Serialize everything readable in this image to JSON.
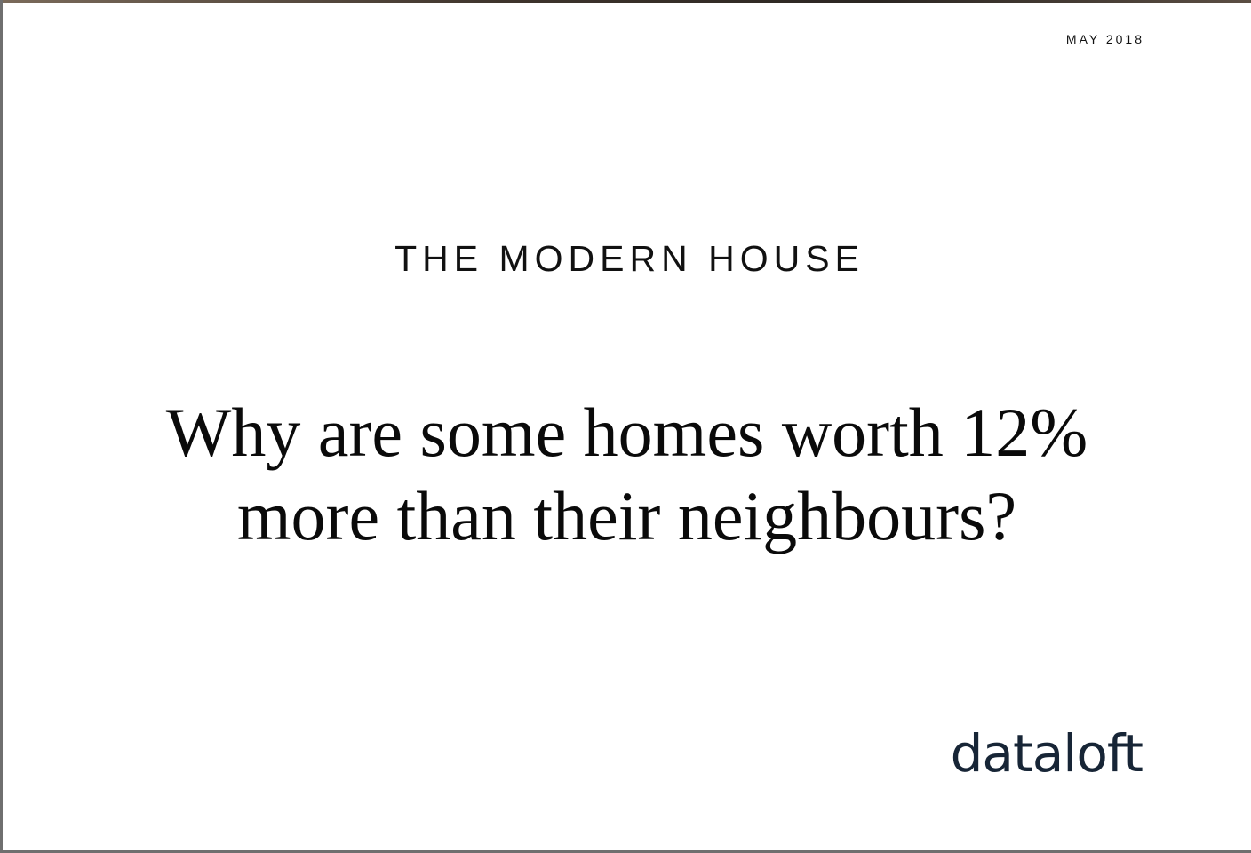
{
  "header": {
    "date": "MAY 2018"
  },
  "main": {
    "brand": "THE MODERN HOUSE",
    "headline_line1": "Why are some homes worth 12%",
    "headline_line2": "more than their neighbours?"
  },
  "footer": {
    "logo_text": "dataloft"
  },
  "colors": {
    "logo": "#172536",
    "text": "#111111"
  }
}
